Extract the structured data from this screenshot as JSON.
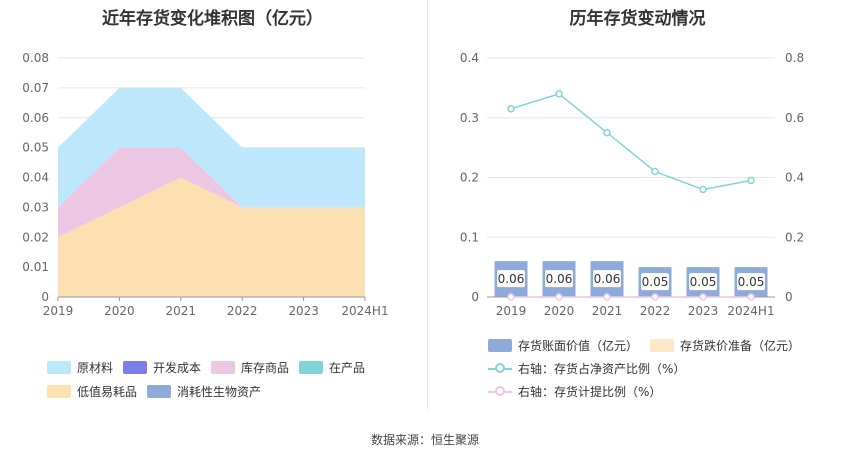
{
  "titles": {
    "left": "近年存货变化堆积图（亿元）",
    "right": "历年存货变动情况"
  },
  "source": "数据来源：恒生聚源",
  "colors": {
    "raw_materials": "#bde7fb",
    "dev_cost": "#7b7ee8",
    "finished_goods": "#ecc7e3",
    "wip": "#7fd4d8",
    "low_value": "#fde0b1",
    "bio_assets": "#8eaad9",
    "book_value_bar": "#8eaad9",
    "impairment": "#fde7c9",
    "net_asset_ratio_line": "#82d3d9",
    "provision_ratio_line": "#ecc7e3"
  },
  "chart_data": [
    {
      "type": "area",
      "stacked": true,
      "title": "近年存货变化堆积图（亿元）",
      "categories": [
        "2019",
        "2020",
        "2021",
        "2022",
        "2023",
        "2024H1"
      ],
      "ylim": [
        0,
        0.08
      ],
      "yticks": [
        "0",
        "0.01",
        "0.02",
        "0.03",
        "0.04",
        "0.05",
        "0.06",
        "0.07",
        "0.08"
      ],
      "grid": true,
      "series": [
        {
          "name": "低值易耗品",
          "values": [
            0.02,
            0.03,
            0.04,
            0.03,
            0.03,
            0.03
          ]
        },
        {
          "name": "库存商品",
          "values": [
            0.01,
            0.02,
            0.01,
            0.0,
            0.0,
            0.0
          ]
        },
        {
          "name": "原材料",
          "values": [
            0.02,
            0.02,
            0.02,
            0.02,
            0.02,
            0.02
          ]
        },
        {
          "name": "开发成本",
          "values": [
            0,
            0,
            0,
            0,
            0,
            0
          ]
        },
        {
          "name": "在产品",
          "values": [
            0,
            0,
            0,
            0,
            0,
            0
          ]
        },
        {
          "name": "消耗性生物资产",
          "values": [
            0,
            0,
            0,
            0,
            0,
            0
          ]
        }
      ],
      "legend": [
        {
          "name": "原材料",
          "color_key": "raw_materials"
        },
        {
          "name": "开发成本",
          "color_key": "dev_cost"
        },
        {
          "name": "库存商品",
          "color_key": "finished_goods"
        },
        {
          "name": "在产品",
          "color_key": "wip"
        },
        {
          "name": "低值易耗品",
          "color_key": "low_value"
        },
        {
          "name": "消耗性生物资产",
          "color_key": "bio_assets"
        }
      ],
      "legend_position": "bottom"
    },
    {
      "type": "bar+line",
      "title": "历年存货变动情况",
      "categories": [
        "2019",
        "2020",
        "2021",
        "2022",
        "2023",
        "2024H1"
      ],
      "ylim_left": [
        0,
        0.4
      ],
      "yticks_left": [
        "0",
        "0.1",
        "0.2",
        "0.3",
        "0.4"
      ],
      "ylim_right": [
        0,
        0.8
      ],
      "yticks_right": [
        "0",
        "0.2",
        "0.4",
        "0.6",
        "0.8"
      ],
      "grid": true,
      "bars": {
        "name": "存货账面价值（亿元）",
        "values": [
          0.06,
          0.06,
          0.06,
          0.05,
          0.05,
          0.05
        ],
        "labels": [
          "0.06",
          "0.06",
          "0.06",
          "0.05",
          "0.05",
          "0.05"
        ]
      },
      "bars_impairment": {
        "name": "存货跌价准备（亿元）",
        "values": [
          0,
          0,
          0,
          0,
          0,
          0
        ]
      },
      "lines": [
        {
          "name": "右轴：存货占净资产比例（%）",
          "axis": "right",
          "values": [
            0.63,
            0.68,
            0.55,
            0.42,
            0.36,
            0.39
          ]
        },
        {
          "name": "右轴：存货计提比例（%）",
          "axis": "right",
          "values": [
            0,
            0,
            0,
            0,
            0,
            0
          ]
        }
      ],
      "legend_position": "bottom"
    }
  ]
}
